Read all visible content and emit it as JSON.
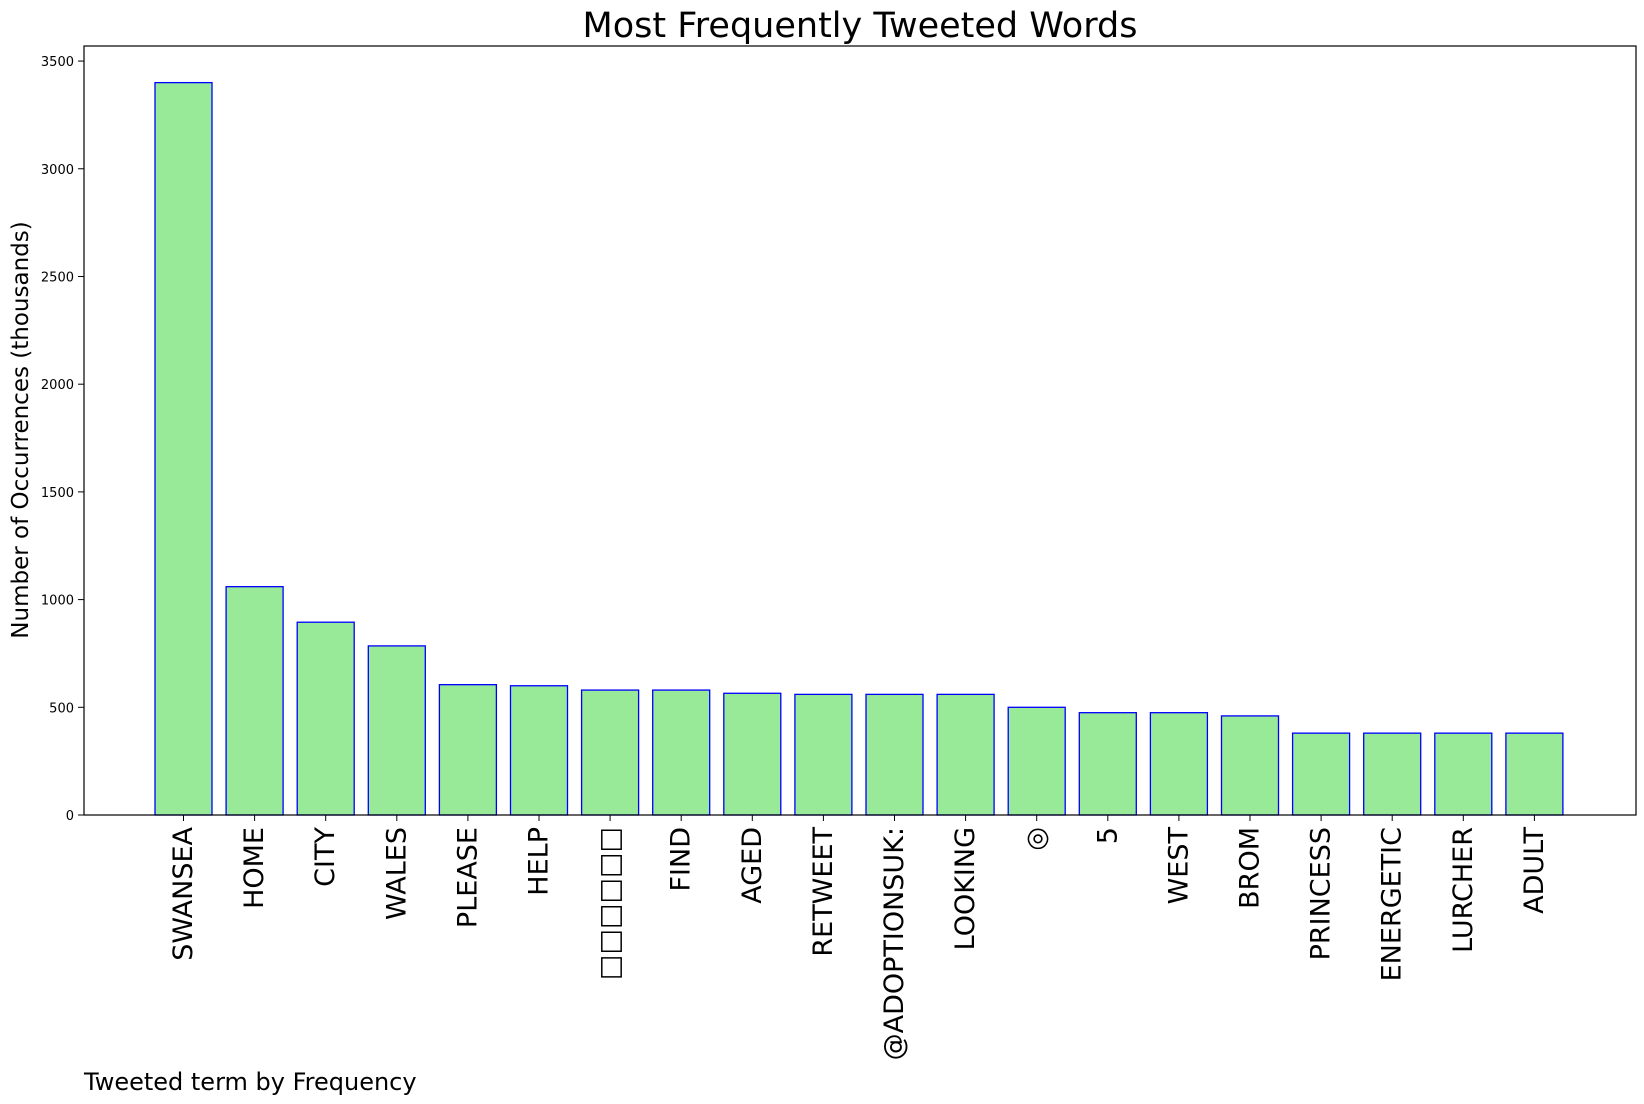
{
  "chart_data": {
    "type": "bar",
    "title": "Most Frequently Tweeted Words",
    "xlabel": "Tweeted term by Frequency",
    "ylabel": "Number of Occurrences (thousands)",
    "categories": [
      "SWANSEA",
      "HOME",
      "CITY",
      "WALES",
      "PLEASE",
      "HELP",
      "□□□□□□",
      "FIND",
      "AGED",
      "RETWEET",
      "@ADOPTIONSUK:",
      "LOOKING",
      "◎",
      "5",
      "WEST",
      "BROM",
      "PRINCESS",
      "ENERGETIC",
      "LURCHER",
      "ADULT"
    ],
    "values": [
      3400,
      1060,
      895,
      785,
      605,
      600,
      580,
      580,
      565,
      560,
      560,
      560,
      500,
      475,
      475,
      460,
      380,
      380,
      380,
      380
    ],
    "ylim": [
      0,
      3570
    ],
    "yticks": [
      0,
      500,
      1000,
      1500,
      2000,
      2500,
      3000,
      3500
    ],
    "bar_fill": "#98ea98",
    "bar_edge": "#0000ff",
    "grid": false,
    "legend": "none"
  }
}
